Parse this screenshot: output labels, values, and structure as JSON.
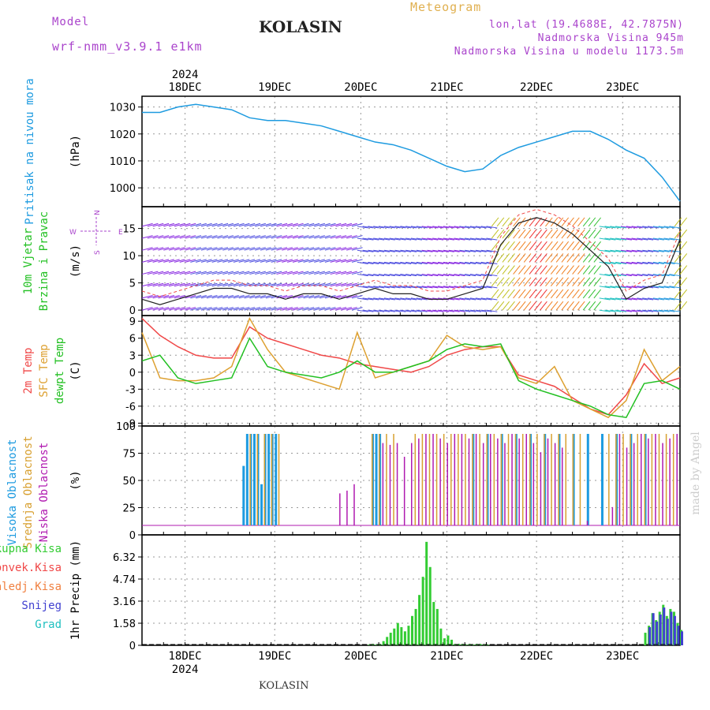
{
  "header": {
    "model_label": "Model",
    "model_name": "wrf-nmm_v3.9.1  e1km",
    "station": "KOLASIN",
    "meteogram": "Meteogram",
    "lonlat": "lon,lat (19.4688E, 42.7875N)",
    "elevation": "Nadmorska Visina 945m",
    "model_elevation": "Nadmorska Visina u modelu 1173.5m",
    "watermark": "made by Angel",
    "footer_station": "KOLASIN"
  },
  "colors": {
    "pressure": "#1e9be0",
    "temp2m": "#f04848",
    "sfc_temp": "#dda030",
    "dewpt": "#22c022",
    "high_cloud": "#1e9be0",
    "mid_cloud": "#d8a030",
    "low_cloud": "#b01ab0",
    "total_precip": "#33cc33",
    "conv_precip": "#f04848",
    "snow": "#4040d0",
    "grid": "#999999",
    "purple_text": "#aa44cc",
    "orange_text": "#e0b050"
  },
  "chart_data": [
    {
      "type": "line",
      "ylabel": "(hPa)",
      "side_label": "Pritisak na nivou mora",
      "y_ticks": [
        "1030",
        "1020",
        "1010",
        "1000"
      ],
      "ylim": [
        993,
        1034
      ],
      "x_day_labels": [
        "18DEC",
        "19DEC",
        "20DEC",
        "21DEC",
        "22DEC",
        "23DEC"
      ],
      "year": "2024",
      "series": [
        {
          "name": "Pritisak na nivou mora",
          "x": [
            0,
            5,
            10,
            15,
            20,
            25,
            30,
            35,
            40,
            45,
            50,
            55,
            60,
            65,
            70,
            75,
            80,
            85,
            90,
            95,
            100,
            105,
            110,
            115,
            120,
            125,
            130,
            135,
            140,
            145,
            150
          ],
          "values": [
            1028,
            1028,
            1030,
            1031,
            1030,
            1029,
            1026,
            1025,
            1025,
            1024,
            1023,
            1021,
            1019,
            1017,
            1016,
            1014,
            1011,
            1008,
            1006,
            1007,
            1012,
            1015,
            1017,
            1019,
            1021,
            1021,
            1018,
            1014,
            1011,
            1004,
            995
          ]
        }
      ]
    },
    {
      "type": "line",
      "ylabel": "(m/s)",
      "side_labels": [
        "10m Vjetar",
        "Brzina i Pravac"
      ],
      "compass": {
        "w": "W",
        "e": "E",
        "s": "S",
        "n": "N"
      },
      "y_ticks": [
        "15",
        "10",
        "5",
        "0"
      ],
      "ylim": [
        -1,
        19
      ],
      "series": [
        {
          "name": "10m Vjetar",
          "x": [
            0,
            5,
            10,
            15,
            20,
            25,
            30,
            35,
            40,
            45,
            50,
            55,
            60,
            65,
            70,
            75,
            80,
            85,
            90,
            95,
            100,
            105,
            110,
            115,
            120,
            125,
            130,
            135,
            140,
            145,
            150
          ],
          "values": [
            2,
            1,
            2,
            3,
            4,
            4,
            3,
            3,
            2,
            3,
            3,
            2,
            3,
            4,
            3,
            3,
            2,
            2,
            3,
            4,
            12,
            16,
            17,
            16,
            14,
            11,
            8,
            2,
            4,
            5,
            13
          ]
        }
      ]
    },
    {
      "type": "line",
      "ylabel": "(C)",
      "side_labels": [
        "2m Temp",
        "SFC Temp",
        "dewpt Temp"
      ],
      "y_ticks": [
        "9",
        "6",
        "3",
        "0",
        "-3",
        "-6",
        "-9"
      ],
      "ylim": [
        -9.5,
        10
      ],
      "series": [
        {
          "name": "2m Temp",
          "x": [
            0,
            5,
            10,
            15,
            20,
            25,
            30,
            35,
            40,
            45,
            50,
            55,
            60,
            65,
            70,
            75,
            80,
            85,
            90,
            95,
            100,
            105,
            110,
            115,
            120,
            125,
            130,
            135,
            140,
            145,
            150
          ],
          "values": [
            9.5,
            6.5,
            4.5,
            3,
            2.5,
            2.5,
            8,
            6,
            5,
            4,
            3,
            2.5,
            1.5,
            1,
            0.5,
            0,
            1,
            3,
            4,
            4.5,
            4.5,
            -0.5,
            -1.5,
            -2.5,
            -4.5,
            -6.5,
            -7.5,
            -4,
            1.5,
            -2,
            -1
          ]
        },
        {
          "name": "SFC Temp",
          "x": [
            0,
            5,
            10,
            15,
            20,
            25,
            30,
            35,
            40,
            45,
            50,
            55,
            60,
            65,
            70,
            75,
            80,
            85,
            90,
            95,
            100,
            105,
            110,
            115,
            120,
            125,
            130,
            135,
            140,
            145,
            150
          ],
          "values": [
            7,
            -1,
            -1.5,
            -1.5,
            -1,
            1,
            9.5,
            4,
            0,
            -1,
            -2,
            -3,
            7,
            -1,
            0,
            1,
            2,
            6.5,
            4.5,
            4,
            4.5,
            -1,
            -2,
            1,
            -5,
            -6.5,
            -8,
            -5,
            4,
            -1.5,
            1
          ]
        },
        {
          "name": "dewpt Temp",
          "x": [
            0,
            5,
            10,
            15,
            20,
            25,
            30,
            35,
            40,
            45,
            50,
            55,
            60,
            65,
            70,
            75,
            80,
            85,
            90,
            95,
            100,
            105,
            110,
            115,
            120,
            125,
            130,
            135,
            140,
            145,
            150
          ],
          "values": [
            2,
            3,
            -1,
            -2,
            -1.5,
            -1,
            6,
            1,
            0,
            -0.5,
            -1,
            0,
            2,
            0,
            0,
            1,
            2,
            4,
            5,
            4.5,
            5,
            -1.5,
            -3,
            -4,
            -5,
            -6,
            -7.5,
            -8,
            -2,
            -1.5,
            -3
          ]
        }
      ]
    },
    {
      "type": "bar",
      "ylabel": "(%)",
      "side_labels": [
        "Visoka Oblacnost",
        "Srednja Oblacnost",
        "Niska Oblacnost"
      ],
      "y_ticks": [
        "100",
        "75",
        "50",
        "25",
        "0"
      ],
      "ylim": [
        0,
        100
      ],
      "series": [
        {
          "name": "Visoka Oblacnost",
          "x": [
            28,
            29,
            30,
            31,
            32,
            33,
            34,
            35,
            36,
            37,
            64,
            65,
            66,
            92,
            96,
            100,
            104,
            108,
            112,
            116,
            120,
            124,
            128,
            132,
            136,
            140
          ],
          "values": [
            65,
            100,
            100,
            100,
            100,
            45,
            100,
            100,
            100,
            100,
            100,
            100,
            100,
            100,
            100,
            100,
            100,
            100,
            100,
            100,
            100,
            100,
            100,
            100,
            100,
            100
          ]
        },
        {
          "name": "Srednja Oblacnost",
          "x": [
            30,
            32,
            34,
            36,
            38,
            64,
            66,
            68,
            70,
            76,
            78,
            80,
            82,
            84,
            86,
            88,
            90,
            92,
            94,
            96,
            98,
            100,
            102,
            104,
            106,
            108,
            110,
            112,
            114,
            116,
            118,
            120,
            122,
            130,
            132,
            134,
            136,
            138,
            140,
            142,
            144,
            146,
            148
          ],
          "values": [
            100,
            100,
            100,
            100,
            100,
            100,
            100,
            100,
            100,
            100,
            100,
            100,
            100,
            100,
            100,
            100,
            100,
            100,
            100,
            100,
            100,
            100,
            100,
            100,
            100,
            100,
            100,
            100,
            100,
            100,
            100,
            100,
            100,
            100,
            100,
            100,
            100,
            100,
            100,
            100,
            100,
            100,
            100
          ]
        },
        {
          "name": "Niska Oblacnost",
          "x": [
            55,
            57,
            59,
            67,
            69,
            71,
            73,
            75,
            77,
            79,
            81,
            83,
            85,
            87,
            89,
            91,
            93,
            95,
            97,
            99,
            101,
            103,
            105,
            107,
            109,
            111,
            113,
            115,
            117,
            124,
            131,
            133,
            135,
            137,
            139,
            141,
            143,
            145,
            147,
            149
          ],
          "values": [
            35,
            38,
            45,
            90,
            88,
            90,
            75,
            90,
            95,
            100,
            100,
            95,
            90,
            100,
            100,
            95,
            100,
            90,
            100,
            95,
            90,
            100,
            95,
            100,
            90,
            80,
            95,
            90,
            85,
            5,
            20,
            100,
            85,
            90,
            100,
            95,
            100,
            90,
            95,
            100
          ]
        }
      ]
    },
    {
      "type": "bar",
      "ylabel": "1hr Precip (mm)",
      "side_labels": [
        "Ukupna Kisa",
        "Konvek.Kisa",
        "Zaledj.Kisa",
        "Snijeg",
        "Grad"
      ],
      "y_ticks": [
        "6.32",
        "4.74",
        "3.16",
        "1.58",
        "0"
      ],
      "ylim": [
        0,
        7.9
      ],
      "x_day_labels": [
        "18DEC",
        "19DEC",
        "20DEC",
        "21DEC",
        "22DEC",
        "23DEC"
      ],
      "year": "2024",
      "series": [
        {
          "name": "Ukupna Kisa",
          "x": [
            63,
            64,
            65,
            66,
            67,
            68,
            69,
            70,
            71,
            72,
            73,
            74,
            75,
            76,
            77,
            78,
            79,
            80,
            81,
            82,
            83,
            84,
            85,
            86,
            87,
            88,
            89,
            90,
            91,
            92,
            93,
            94,
            95,
            96,
            140,
            141,
            142,
            143,
            144,
            145,
            146,
            147,
            148,
            149,
            150
          ],
          "values": [
            0.05,
            0.1,
            0.05,
            0.1,
            0.3,
            0.6,
            0.9,
            1.2,
            1.6,
            1.3,
            1.0,
            1.4,
            2.1,
            2.6,
            3.6,
            4.9,
            7.4,
            5.6,
            3.1,
            2.6,
            1.2,
            0.5,
            0.7,
            0.4,
            0.1,
            0.1,
            0.1,
            0.05,
            0.1,
            0.05,
            0.1,
            0.1,
            0.05,
            0.05,
            0.9,
            1.4,
            2.3,
            1.8,
            2.4,
            2.9,
            2.1,
            2.6,
            2.4,
            1.6,
            1.1
          ]
        },
        {
          "name": "Snijeg",
          "x": [
            141,
            142,
            143,
            144,
            145,
            146,
            147,
            148,
            149,
            150
          ],
          "values": [
            1.3,
            2.3,
            1.7,
            2.2,
            2.7,
            1.9,
            2.4,
            2.1,
            1.4,
            1.0
          ]
        }
      ]
    }
  ]
}
